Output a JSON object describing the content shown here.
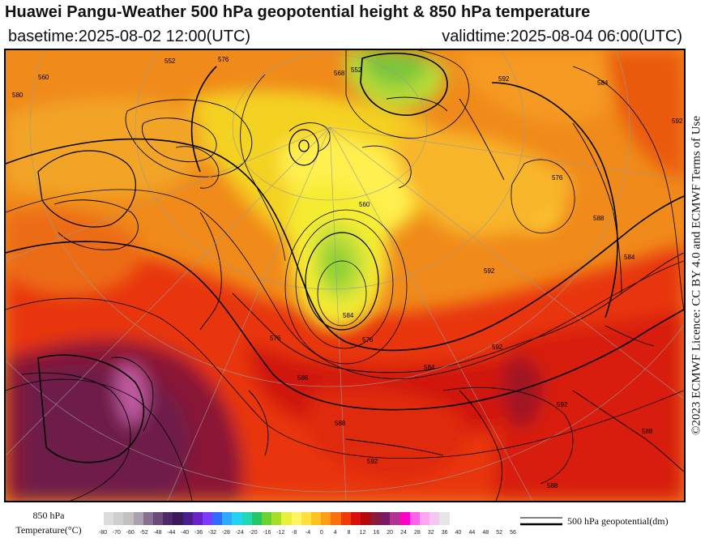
{
  "header": {
    "title": "Huawei Pangu-Weather 500 hPa geopotential height & 850 hPa temperature",
    "basetime": "basetime:2025-08-02 12:00(UTC)",
    "validtime": "validtime:2025-08-04 06:00(UTC)"
  },
  "side_license": "©2023 ECMWF Licence: CC BY 4.0 and ECMWF Terms of Use",
  "colorbar": {
    "label_line1": "850 hPa",
    "label_line2": "Temperature(°C)",
    "ticks": [
      "-80",
      "-70",
      "-60",
      "-52",
      "-48",
      "-44",
      "-40",
      "-36",
      "-32",
      "-28",
      "-24",
      "-20",
      "-16",
      "-12",
      "-8",
      "-4",
      "0",
      "4",
      "8",
      "12",
      "16",
      "20",
      "24",
      "28",
      "32",
      "36",
      "40",
      "44",
      "48",
      "52",
      "56"
    ],
    "colors": [
      "#dcdcdc",
      "#cfcfcf",
      "#c0c0c0",
      "#aaa1b0",
      "#8a7090",
      "#6b4a7a",
      "#4d2a66",
      "#3a1a5c",
      "#48208c",
      "#6a22c8",
      "#7a3cff",
      "#2e6cff",
      "#2fa8ff",
      "#22d2f2",
      "#22d8b0",
      "#28c468",
      "#6cd030",
      "#a8dd2c",
      "#e8f23c",
      "#fff560",
      "#ffe03c",
      "#ffc21e",
      "#ff9e14",
      "#ff6e0c",
      "#f23a08",
      "#d81208",
      "#b40a0a",
      "#8c1a3c",
      "#7a1a66",
      "#b43296",
      "#ff00c8",
      "#ff62e8",
      "#ffa6f2",
      "#f2c8f2",
      "#e6e6e6"
    ]
  },
  "contour_legend": {
    "label": "500 hPa geopotential(dm)"
  },
  "map": {
    "contour_labels": [
      "552",
      "576",
      "560",
      "580",
      "592",
      "568",
      "552",
      "560",
      "576",
      "584",
      "576",
      "588",
      "584",
      "592",
      "592",
      "584",
      "588",
      "588",
      "592",
      "588",
      "576",
      "584",
      "592",
      "588",
      "592"
    ]
  }
}
